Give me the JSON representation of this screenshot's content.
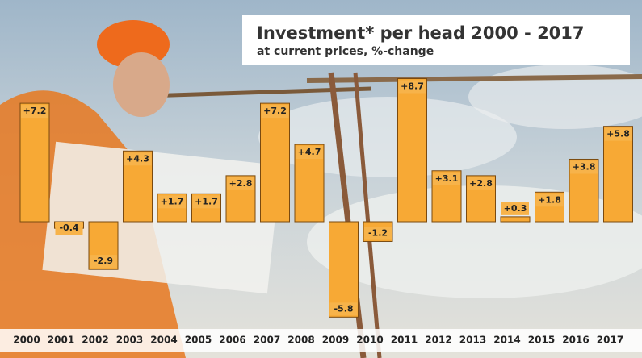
{
  "chart_data": {
    "type": "bar",
    "title": "Investment* per head 2000 - 2017",
    "subtitle": "at current prices, %-change",
    "categories": [
      "2000",
      "2001",
      "2002",
      "2003",
      "2004",
      "2005",
      "2006",
      "2007",
      "2008",
      "2009",
      "2010",
      "2011",
      "2012",
      "2013",
      "2014",
      "2015",
      "2016",
      "2017"
    ],
    "values": [
      7.2,
      -0.4,
      -2.9,
      4.3,
      1.7,
      1.7,
      2.8,
      7.2,
      4.7,
      -5.8,
      -1.2,
      8.7,
      3.1,
      2.8,
      0.3,
      1.8,
      3.8,
      5.8
    ],
    "value_labels": [
      "+7.2",
      "-0.4",
      "-2.9",
      "+4.3",
      "+1.7",
      "+1.7",
      "+2.8",
      "+7.2",
      "+4.7",
      "-5.8",
      "-1.2",
      "+8.7",
      "+3.1",
      "+2.8",
      "+0.3",
      "+1.8",
      "+3.8",
      "+5.8"
    ],
    "color": "#f7a935"
  }
}
